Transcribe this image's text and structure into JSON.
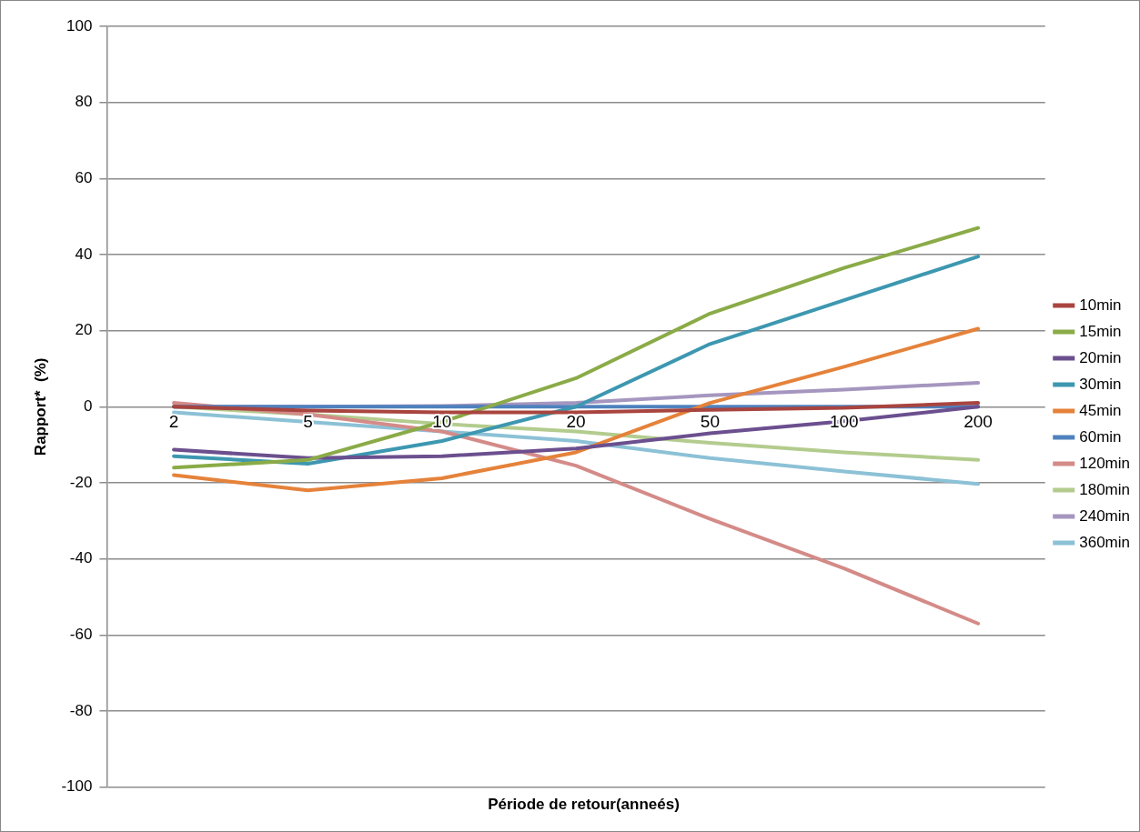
{
  "chart_data": {
    "type": "line",
    "xlabel": "Période de retour(anneés)",
    "ylabel": "Rapport*  (%)",
    "categories": [
      "2",
      "5",
      "10",
      "20",
      "50",
      "100",
      "200"
    ],
    "series": [
      {
        "name": "10min",
        "color": "#a9443f",
        "values": [
          0,
          -1,
          -1.5,
          -1.5,
          -0.8,
          -0.3,
          1
        ]
      },
      {
        "name": "15min",
        "color": "#8aab47",
        "values": [
          -16,
          -14,
          -4,
          7.5,
          24.5,
          36.5,
          47
        ]
      },
      {
        "name": "20min",
        "color": "#6b4f8e",
        "values": [
          -11.3,
          -13.5,
          -13,
          -11,
          -7,
          -3.8,
          0
        ]
      },
      {
        "name": "30min",
        "color": "#3d97b0",
        "values": [
          -13,
          -15,
          -9,
          0,
          16.5,
          28,
          39.5
        ]
      },
      {
        "name": "45min",
        "color": "#e5823a",
        "values": [
          -18,
          -22,
          -18.8,
          -12,
          1,
          10.5,
          20.5
        ]
      },
      {
        "name": "60min",
        "color": "#4f81bd",
        "values": [
          0,
          0,
          0,
          0,
          0,
          0,
          0
        ]
      },
      {
        "name": "120min",
        "color": "#d48b88",
        "values": [
          1,
          -2,
          -6.5,
          -15.5,
          -29.5,
          -42.5,
          -57
        ]
      },
      {
        "name": "180min",
        "color": "#b3cc8e",
        "values": [
          0,
          -2,
          -4.5,
          -6.5,
          -9.5,
          -12,
          -14
        ]
      },
      {
        "name": "240min",
        "color": "#a596bf",
        "values": [
          0,
          0,
          0.2,
          1,
          3,
          4.5,
          6.3
        ]
      },
      {
        "name": "360min",
        "color": "#8cc1d6",
        "values": [
          -1.5,
          -4,
          -6.5,
          -9,
          -13.5,
          -17,
          -20.3
        ]
      }
    ],
    "ylim": [
      -100,
      100
    ],
    "yticks": [
      -100,
      -80,
      -60,
      -40,
      -20,
      0,
      20,
      40,
      60,
      80,
      100
    ],
    "grid": "y",
    "legend": "right",
    "marker": "none",
    "line_style": "solid"
  }
}
